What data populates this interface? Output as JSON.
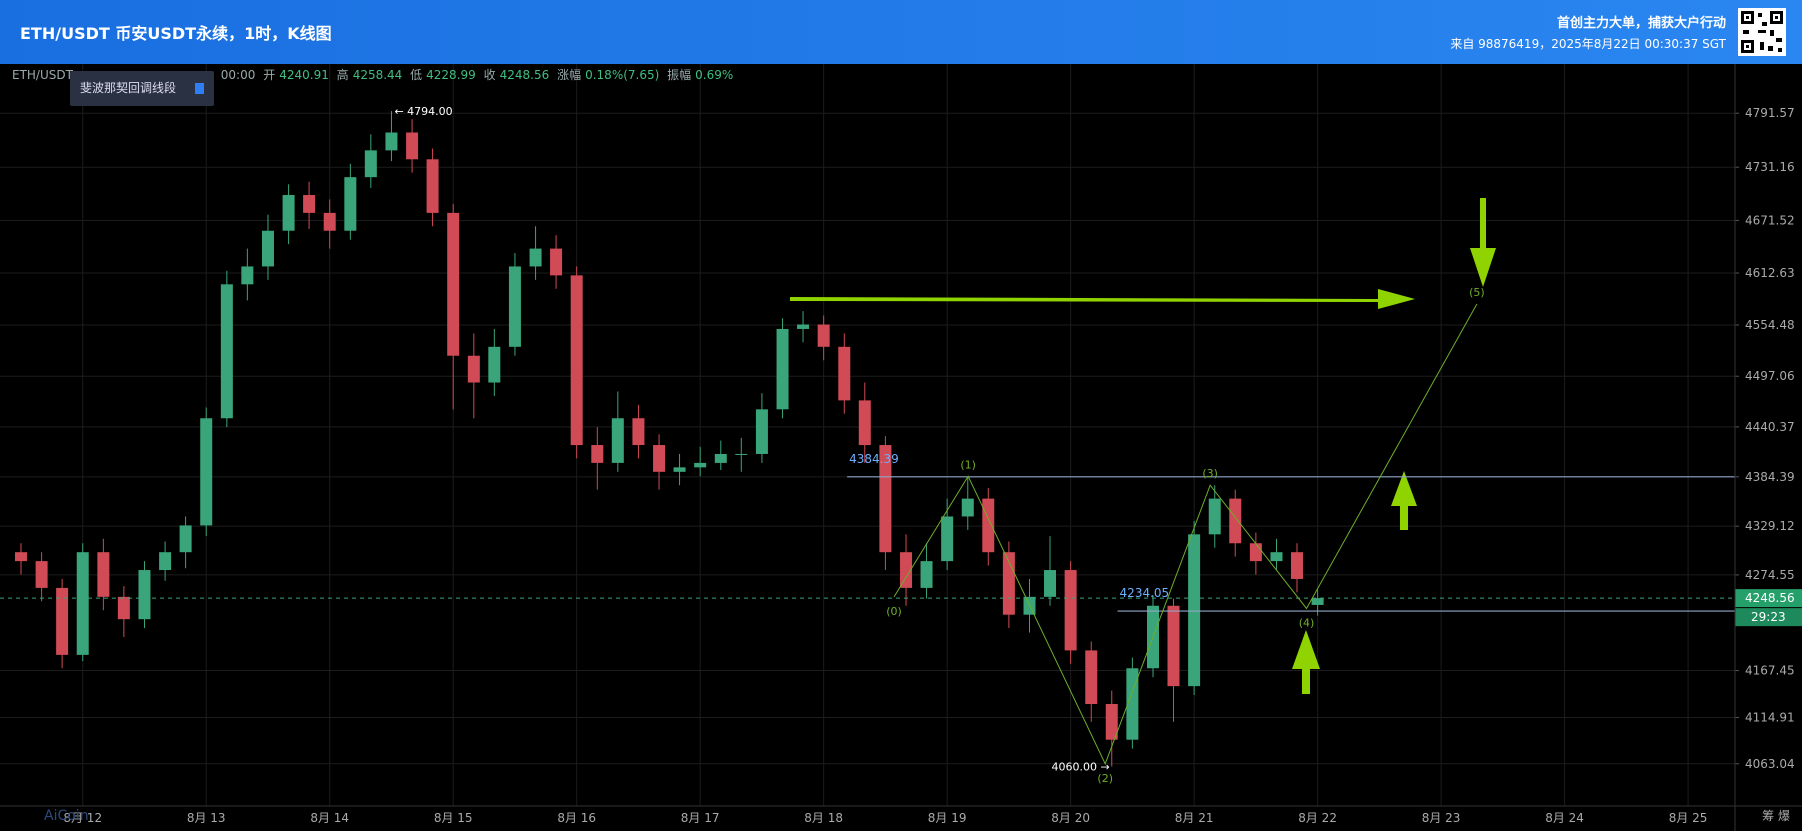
{
  "header": {
    "title": "ETH/USDT 币安USDT永续，1时，K线图",
    "tagline": "首创主力大单，捕获大户行动",
    "source": "来自 98876419，2025年8月22日 00:30:37 SGT"
  },
  "info": {
    "symbol": "ETH/USDT",
    "time": "00:00",
    "open_label": "开",
    "open": 4240.91,
    "high_label": "高",
    "high": 4258.44,
    "low_label": "低",
    "low": 4228.99,
    "close_label": "收",
    "close": 4248.56,
    "change_label": "涨幅",
    "change": "0.18%(7.65)",
    "amp_label": "振幅",
    "amp": "0.69%",
    "tool": "斐波那契回调线段"
  },
  "chart_data": {
    "type": "candlestick",
    "xlim": [
      11.33,
      25.38
    ],
    "ylim": [
      4018,
      4845.6
    ],
    "xticks": [
      {
        "value": 12,
        "label": "8月 12"
      },
      {
        "value": 13,
        "label": "8月 13"
      },
      {
        "value": 14,
        "label": "8月 14"
      },
      {
        "value": 15,
        "label": "8月 15"
      },
      {
        "value": 16,
        "label": "8月 16"
      },
      {
        "value": 17,
        "label": "8月 17"
      },
      {
        "value": 18,
        "label": "8月 18"
      },
      {
        "value": 19,
        "label": "8月 19"
      },
      {
        "value": 20,
        "label": "8月 20"
      },
      {
        "value": 21,
        "label": "8月 21"
      },
      {
        "value": 22,
        "label": "8月 22"
      },
      {
        "value": 23,
        "label": "8月 23"
      },
      {
        "value": 24,
        "label": "8月 24"
      },
      {
        "value": 25,
        "label": "8月 25"
      }
    ],
    "yticks": [
      4791.57,
      4731.16,
      4671.52,
      4612.63,
      4554.48,
      4497.06,
      4440.37,
      4384.39,
      4329.12,
      4274.55,
      4167.45,
      4114.91,
      4063.04
    ],
    "grid": true,
    "up_color": "#3aa57a",
    "down_color": "#d04b55",
    "x": [
      11.5,
      11.667,
      11.833,
      12,
      12.167,
      12.333,
      12.5,
      12.667,
      12.833,
      13,
      13.167,
      13.333,
      13.5,
      13.667,
      13.833,
      14,
      14.167,
      14.333,
      14.5,
      14.667,
      14.833,
      15,
      15.167,
      15.333,
      15.5,
      15.667,
      15.833,
      16,
      16.167,
      16.333,
      16.5,
      16.667,
      16.833,
      17,
      17.167,
      17.333,
      17.5,
      17.667,
      17.833,
      18,
      18.167,
      18.333,
      18.5,
      18.667,
      18.833,
      19,
      19.167,
      19.333,
      19.5,
      19.667,
      19.833,
      20,
      20.167,
      20.333,
      20.5,
      20.667,
      20.833,
      21,
      21.167,
      21.333,
      21.5,
      21.667,
      21.833,
      22
    ],
    "candles": [
      [
        4300,
        4310,
        4275,
        4290
      ],
      [
        4290,
        4300,
        4245,
        4260
      ],
      [
        4260,
        4270,
        4170,
        4185
      ],
      [
        4185,
        4310,
        4178,
        4300
      ],
      [
        4300,
        4315,
        4235,
        4250
      ],
      [
        4250,
        4262,
        4205,
        4225
      ],
      [
        4225,
        4290,
        4215,
        4280
      ],
      [
        4280,
        4312,
        4268,
        4300
      ],
      [
        4300,
        4340,
        4282,
        4330
      ],
      [
        4330,
        4462,
        4318,
        4450
      ],
      [
        4450,
        4615,
        4440,
        4600
      ],
      [
        4600,
        4640,
        4582,
        4620
      ],
      [
        4620,
        4678,
        4605,
        4660
      ],
      [
        4660,
        4712,
        4645,
        4700
      ],
      [
        4700,
        4715,
        4662,
        4680
      ],
      [
        4680,
        4695,
        4640,
        4660
      ],
      [
        4660,
        4735,
        4650,
        4720
      ],
      [
        4720,
        4768,
        4708,
        4750
      ],
      [
        4750,
        4794,
        4738,
        4770
      ],
      [
        4770,
        4785,
        4725,
        4740
      ],
      [
        4740,
        4752,
        4665,
        4680
      ],
      [
        4680,
        4690,
        4460,
        4520
      ],
      [
        4520,
        4545,
        4450,
        4490
      ],
      [
        4490,
        4550,
        4475,
        4530
      ],
      [
        4530,
        4635,
        4520,
        4620
      ],
      [
        4620,
        4665,
        4605,
        4640
      ],
      [
        4640,
        4655,
        4595,
        4610
      ],
      [
        4610,
        4620,
        4405,
        4420
      ],
      [
        4420,
        4440,
        4370,
        4400
      ],
      [
        4400,
        4480,
        4390,
        4450
      ],
      [
        4450,
        4465,
        4405,
        4420
      ],
      [
        4420,
        4432,
        4370,
        4390
      ],
      [
        4390,
        4410,
        4375,
        4395
      ],
      [
        4395,
        4418,
        4385,
        4400
      ],
      [
        4400,
        4425,
        4392,
        4410
      ],
      [
        4410,
        4428,
        4390,
        4410
      ],
      [
        4410,
        4478,
        4400,
        4460
      ],
      [
        4460,
        4562,
        4450,
        4550
      ],
      [
        4550,
        4570,
        4535,
        4555
      ],
      [
        4555,
        4565,
        4515,
        4530
      ],
      [
        4530,
        4545,
        4455,
        4470
      ],
      [
        4470,
        4490,
        4400,
        4420
      ],
      [
        4420,
        4430,
        4280,
        4300
      ],
      [
        4300,
        4320,
        4240,
        4260
      ],
      [
        4260,
        4310,
        4248,
        4290
      ],
      [
        4290,
        4360,
        4280,
        4340
      ],
      [
        4340,
        4384,
        4325,
        4360
      ],
      [
        4360,
        4372,
        4285,
        4300
      ],
      [
        4300,
        4312,
        4215,
        4230
      ],
      [
        4230,
        4270,
        4210,
        4250
      ],
      [
        4250,
        4318,
        4240,
        4280
      ],
      [
        4280,
        4290,
        4175,
        4190
      ],
      [
        4190,
        4200,
        4110,
        4130
      ],
      [
        4130,
        4145,
        4060,
        4090
      ],
      [
        4090,
        4182,
        4080,
        4170
      ],
      [
        4170,
        4252,
        4160,
        4240
      ],
      [
        4240,
        4248,
        4110,
        4150
      ],
      [
        4150,
        4335,
        4140,
        4320
      ],
      [
        4320,
        4375,
        4305,
        4360
      ],
      [
        4360,
        4370,
        4295,
        4310
      ],
      [
        4310,
        4322,
        4275,
        4290
      ],
      [
        4290,
        4315,
        4280,
        4300
      ],
      [
        4300,
        4310,
        4255,
        4270
      ],
      [
        4240.91,
        4258.44,
        4228.99,
        4248.56
      ]
    ],
    "extremes": [
      {
        "x": 14.5,
        "value": 4794.0,
        "label": "← 4794.00"
      },
      {
        "x": 20.333,
        "value": 4060.0,
        "label": "4060.00 →"
      }
    ],
    "price_lines": [
      {
        "from": 18.19,
        "value": 4384.39,
        "label": "4384.39"
      },
      {
        "from": 20.38,
        "value": 4234.05,
        "label": "4234.05"
      }
    ],
    "last": {
      "value": 4248.56,
      "label": "4248.56",
      "countdown": "29:23"
    },
    "wave": [
      {
        "label": "(0)",
        "x": 18.57,
        "value": 4250
      },
      {
        "label": "(1)",
        "x": 19.17,
        "value": 4385
      },
      {
        "label": "(2)",
        "x": 20.28,
        "value": 4063
      },
      {
        "label": "(3)",
        "x": 21.13,
        "value": 4375
      },
      {
        "label": "(4)",
        "x": 21.91,
        "value": 4237
      },
      {
        "label": "(5)",
        "x": 23.29,
        "value": 4578
      }
    ],
    "wave_color": "#6fae2a"
  },
  "footer": {
    "side": "筹 爆",
    "watermark": "AiCoin"
  }
}
